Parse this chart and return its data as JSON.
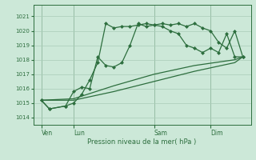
{
  "bg_color": "#cce8d8",
  "grid_color": "#aaccb8",
  "line_color": "#2d6e3e",
  "title": "Pression niveau de la mer( hPa )",
  "ylabel_ticks": [
    1014,
    1015,
    1016,
    1017,
    1018,
    1019,
    1020,
    1021
  ],
  "ylim": [
    1013.5,
    1021.8
  ],
  "xtick_labels": [
    "Ven",
    "Lun",
    "Sam",
    "Dim"
  ],
  "xtick_positions": [
    1,
    5,
    15,
    22
  ],
  "vline_positions": [
    1,
    5,
    15,
    22
  ],
  "xlim": [
    0,
    27
  ],
  "series1_x": [
    1,
    2,
    4,
    5,
    6,
    7,
    8,
    9,
    10,
    11,
    12,
    13,
    14,
    15,
    16,
    17,
    18,
    19,
    20,
    21,
    22,
    23,
    24,
    25,
    26
  ],
  "series1_y": [
    1015.2,
    1014.6,
    1014.8,
    1015.8,
    1016.1,
    1016.0,
    1018.2,
    1017.6,
    1017.5,
    1017.8,
    1019.0,
    1020.5,
    1020.3,
    1020.4,
    1020.5,
    1020.4,
    1020.5,
    1020.3,
    1020.5,
    1020.2,
    1020.0,
    1019.2,
    1018.8,
    1020.0,
    1018.2
  ],
  "series2_x": [
    1,
    2,
    4,
    5,
    6,
    7,
    8,
    9,
    10,
    11,
    12,
    13,
    14,
    15,
    16,
    17,
    18,
    19,
    20,
    21,
    22,
    23,
    24,
    25,
    26
  ],
  "series2_y": [
    1015.2,
    1014.6,
    1014.8,
    1015.0,
    1015.6,
    1016.6,
    1017.8,
    1020.5,
    1020.2,
    1020.3,
    1020.3,
    1020.4,
    1020.5,
    1020.4,
    1020.3,
    1020.0,
    1019.8,
    1019.0,
    1018.8,
    1018.5,
    1018.8,
    1018.5,
    1019.8,
    1018.2,
    1018.2
  ],
  "series3_x": [
    1,
    5,
    10,
    15,
    20,
    25,
    26
  ],
  "series3_y": [
    1015.2,
    1015.2,
    1015.8,
    1016.5,
    1017.2,
    1017.8,
    1018.2
  ],
  "series4_x": [
    1,
    5,
    10,
    15,
    20,
    25,
    26
  ],
  "series4_y": [
    1015.2,
    1015.3,
    1016.2,
    1017.0,
    1017.6,
    1018.0,
    1018.2
  ]
}
